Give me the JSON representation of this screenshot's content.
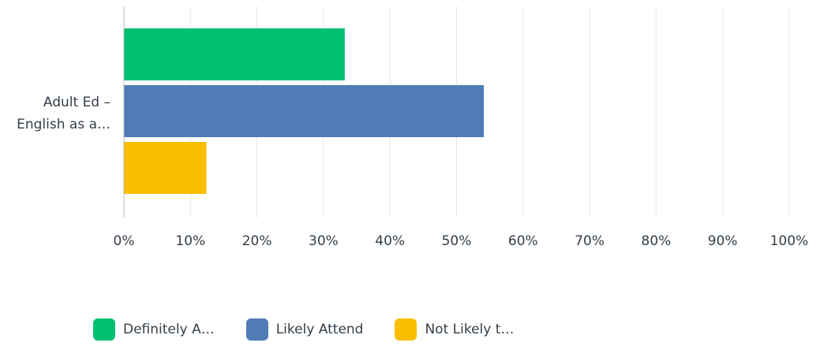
{
  "chart_data": {
    "type": "bar",
    "orientation": "horizontal",
    "categories": [
      "Adult Ed –\nEnglish as a…"
    ],
    "series": [
      {
        "name": "Definitely A…",
        "color": "#00bf6f",
        "values": [
          33.2
        ]
      },
      {
        "name": "Likely Attend",
        "color": "#507cb6",
        "values": [
          54.1
        ]
      },
      {
        "name": "Not Likely t…",
        "color": "#f9be00",
        "values": [
          12.4
        ]
      }
    ],
    "xlim": [
      0,
      100
    ],
    "ticks": [
      "0%",
      "10%",
      "20%",
      "30%",
      "40%",
      "50%",
      "60%",
      "70%",
      "80%",
      "90%",
      "100%"
    ],
    "grid": true,
    "legend_position": "bottom"
  }
}
